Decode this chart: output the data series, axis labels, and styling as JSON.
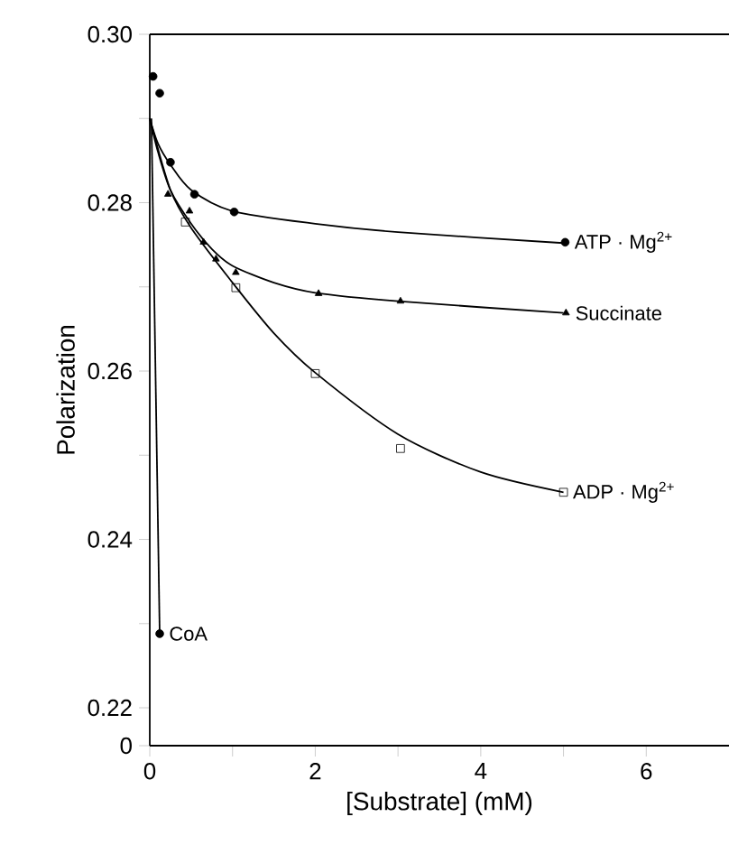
{
  "chart_data": {
    "type": "scatter",
    "xlabel": "[Substrate] (mM)",
    "ylabel": "Polarization",
    "xlim": [
      0,
      7
    ],
    "ylim": [
      0.2155,
      0.3
    ],
    "xticks": [
      0,
      {
        "value": 1,
        "label": null
      },
      2,
      {
        "value": 3,
        "label": null
      },
      4,
      {
        "value": 5,
        "label": null
      },
      6
    ],
    "yticks": [
      {
        "value": 0.2155,
        "label": "0"
      },
      0.22,
      {
        "value": 0.23,
        "label": null
      },
      0.24,
      {
        "value": 0.25,
        "label": null
      },
      0.26,
      {
        "value": 0.27,
        "label": null
      },
      0.28,
      {
        "value": 0.29,
        "label": null
      },
      {
        "value": 0.3,
        "label": "0.30"
      }
    ],
    "legend": false,
    "grid": false,
    "series": [
      {
        "name": "ATP · Mg$^{2+}$",
        "marker": "circle",
        "color": "#000000",
        "x": [
          0.04,
          0.12,
          0.25,
          0.54,
          1.02,
          5.02
        ],
        "values": [
          0.295,
          0.293,
          0.2848,
          0.281,
          0.2789,
          0.2753
        ]
      },
      {
        "name": "Succinate",
        "marker": "triangle",
        "color": "#000000",
        "x": [
          0.22,
          0.48,
          0.65,
          0.8,
          1.04,
          2.04,
          3.03,
          5.03
        ],
        "values": [
          0.281,
          0.279,
          0.2753,
          0.2733,
          0.2717,
          0.2692,
          0.2683,
          0.2669
        ]
      },
      {
        "name": "ADP · Mg$^{2+}$",
        "marker": "square",
        "color": "#000000",
        "x": [
          0.43,
          1.04,
          2.0,
          3.03,
          5.0
        ],
        "values": [
          0.2777,
          0.2699,
          0.2597,
          0.2508,
          0.2456
        ]
      },
      {
        "name": "CoA",
        "marker": "circle",
        "color": "#000000",
        "x": [
          0.12
        ],
        "values": [
          0.2288
        ]
      },
      {
        "type": "line",
        "color": "#000000",
        "x": [
          0,
          0.1,
          0.25,
          0.5,
          1,
          2,
          3,
          5
        ],
        "values": [
          0.29,
          0.287,
          0.2845,
          0.2815,
          0.279,
          0.2775,
          0.2765,
          0.2752
        ]
      },
      {
        "type": "line",
        "color": "#000000",
        "x": [
          0,
          0.1,
          0.25,
          0.5,
          0.75,
          1,
          1.5,
          2,
          3,
          5
        ],
        "values": [
          0.29,
          0.286,
          0.2815,
          0.2775,
          0.2745,
          0.2725,
          0.2705,
          0.2693,
          0.2683,
          0.2669
        ]
      },
      {
        "type": "line",
        "color": "#000000",
        "x": [
          0,
          0.25,
          0.5,
          1,
          1.5,
          2,
          3,
          4,
          5
        ],
        "values": [
          0.29,
          0.2815,
          0.277,
          0.2705,
          0.2645,
          0.2598,
          0.2525,
          0.248,
          0.2456
        ]
      },
      {
        "type": "line",
        "color": "#000000",
        "x": [
          0.02,
          0.12
        ],
        "values": [
          0.29,
          0.2288
        ]
      }
    ]
  }
}
